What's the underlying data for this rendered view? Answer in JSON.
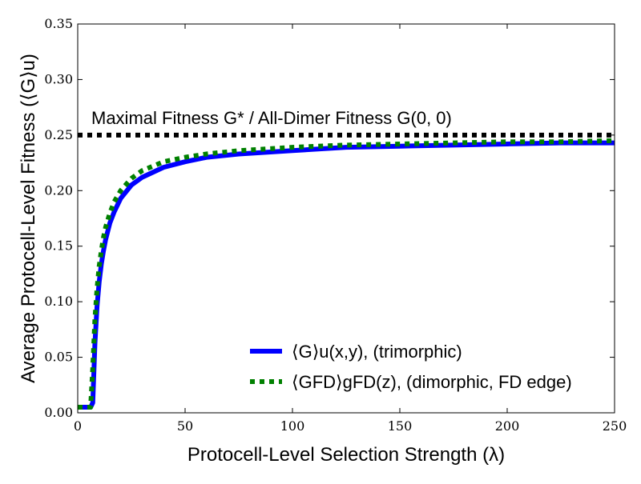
{
  "chart_data": {
    "type": "line",
    "title": "",
    "xlabel": "Protocell-Level Selection Strength (λ)",
    "ylabel": "Average Protocell-Level Fitness (⟨G⟩u)",
    "xlim": [
      0,
      250
    ],
    "ylim": [
      0,
      0.35
    ],
    "x_ticks": [
      0,
      50,
      100,
      150,
      200,
      250
    ],
    "y_ticks": [
      0.0,
      0.05,
      0.1,
      0.15,
      0.2,
      0.25,
      0.3,
      0.35
    ],
    "x_tick_labels": [
      "0",
      "50",
      "100",
      "150",
      "200",
      "250"
    ],
    "y_tick_labels": [
      "0.00",
      "0.05",
      "0.10",
      "0.15",
      "0.20",
      "0.25",
      "0.30",
      "0.35"
    ],
    "grid": false,
    "legend_position": "lower-right",
    "annotation": "Maximal Fitness G* / All-Dimer Fitness G(0, 0)",
    "reference_line": {
      "y": 0.25,
      "color": "#000000",
      "style": "dotted"
    },
    "series": [
      {
        "name": "⟨G⟩u(x,y), (trimorphic)",
        "color": "#0000ff",
        "style": "solid",
        "x": [
          0,
          4,
          6,
          7,
          8,
          9,
          10,
          11,
          12,
          13,
          15,
          17,
          20,
          25,
          30,
          40,
          50,
          60,
          75,
          100,
          125,
          150,
          175,
          200,
          225,
          250
        ],
        "y": [
          0.005,
          0.005,
          0.005,
          0.009,
          0.062,
          0.096,
          0.118,
          0.134,
          0.146,
          0.156,
          0.171,
          0.181,
          0.193,
          0.205,
          0.212,
          0.221,
          0.226,
          0.23,
          0.233,
          0.236,
          0.239,
          0.24,
          0.241,
          0.242,
          0.243,
          0.243
        ]
      },
      {
        "name": "⟨GFD⟩gFD(z), (dimorphic, FD edge)",
        "color": "#008000",
        "style": "dotted",
        "x": [
          0,
          4,
          6,
          7,
          8,
          9,
          10,
          11,
          12,
          13,
          15,
          17,
          20,
          25,
          30,
          40,
          50,
          60,
          75,
          100,
          125,
          150,
          175,
          200,
          225,
          250
        ],
        "y": [
          0.005,
          0.005,
          0.005,
          0.04,
          0.084,
          0.112,
          0.132,
          0.146,
          0.158,
          0.167,
          0.18,
          0.19,
          0.2,
          0.211,
          0.218,
          0.226,
          0.23,
          0.233,
          0.236,
          0.239,
          0.241,
          0.242,
          0.243,
          0.244,
          0.244,
          0.245
        ]
      }
    ]
  }
}
